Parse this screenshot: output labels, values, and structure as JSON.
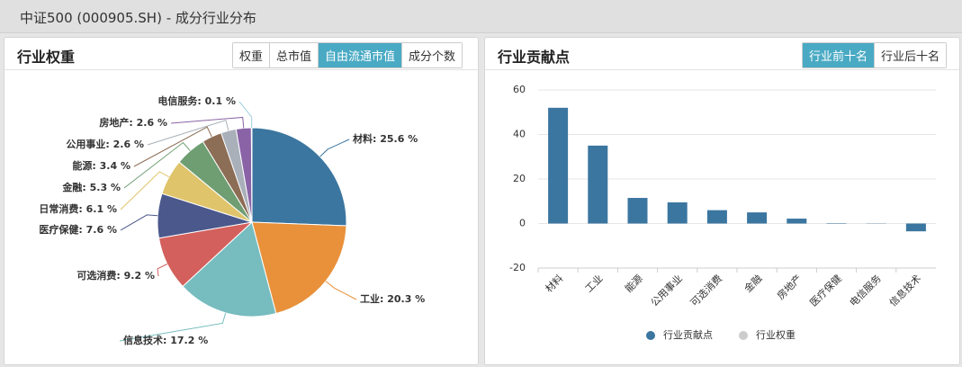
{
  "page_title": "中证500 (000905.SH) - 成分行业分布",
  "left_tabs": [
    "权重",
    "总市值",
    "自由流通市值",
    "成分个数"
  ],
  "left_active_tab": 2,
  "right_tabs": [
    "行业前十名",
    "行业后十名"
  ],
  "right_active_tab": 0,
  "chart_data": [
    {
      "type": "pie",
      "title": "行业权重",
      "categories": [
        "材料",
        "工业",
        "信息技术",
        "可选消费",
        "医疗保健",
        "日常消费",
        "金融",
        "能源",
        "公用事业",
        "房地产",
        "电信服务"
      ],
      "values": [
        25.6,
        20.3,
        17.2,
        9.2,
        7.6,
        6.1,
        5.3,
        3.4,
        2.6,
        2.6,
        0.1
      ],
      "value_labels": [
        "材料: 25.6 %",
        "工业: 20.3 %",
        "信息技术: 17.2 %",
        "可选消费: 9.2 %",
        "医疗保健: 7.6 %",
        "日常消费: 6.1 %",
        "金融: 5.3 %",
        "能源: 3.4 %",
        "公用事业: 2.6 %",
        "房地产: 2.6 %",
        "电信服务: 0.1 %"
      ],
      "colors": [
        "#3b76a0",
        "#e8913a",
        "#77bcbf",
        "#d3605c",
        "#4b588c",
        "#dfc46b",
        "#6e9e72",
        "#8c6d55",
        "#a9b0ba",
        "#8963a6",
        "#9fd0e0"
      ]
    },
    {
      "type": "bar",
      "title": "行业贡献点",
      "categories": [
        "材料",
        "工业",
        "能源",
        "公用事业",
        "可选消费",
        "金融",
        "房地产",
        "医疗保健",
        "电信服务",
        "信息技术"
      ],
      "series": [
        {
          "name": "行业贡献点",
          "color": "#3b76a0",
          "values": [
            52,
            35,
            11.5,
            9.5,
            6,
            5,
            2.2,
            0.2,
            -0.1,
            -3.5
          ]
        }
      ],
      "inactive_legend": [
        {
          "name": "行业权重",
          "color": "#cccccc"
        }
      ],
      "ylim": [
        -20,
        60
      ],
      "yticks": [
        -20,
        0,
        20,
        40,
        60
      ],
      "grid": true
    }
  ]
}
